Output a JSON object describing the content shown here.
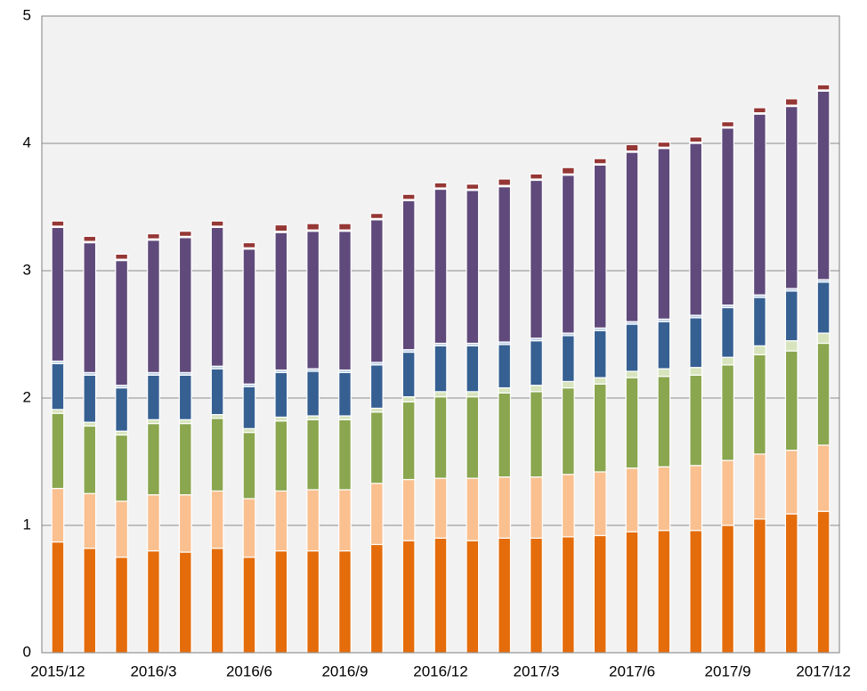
{
  "chart_data": {
    "type": "stacked_bar",
    "categories": [
      "2015/12",
      null,
      null,
      "2016/3",
      null,
      null,
      "2016/6",
      null,
      null,
      "2016/9",
      null,
      null,
      "2016/12",
      null,
      null,
      "2017/3",
      null,
      null,
      "2017/6",
      null,
      null,
      "2017/9",
      null,
      null,
      "2017/12"
    ],
    "ylim": [
      0,
      5
    ],
    "yticks": [
      0,
      1,
      2,
      3,
      4,
      5
    ],
    "grid": true,
    "series": [
      {
        "color": "#e46c0a",
        "values": [
          0.87,
          0.82,
          0.75,
          0.8,
          0.79,
          0.82,
          0.75,
          0.8,
          0.8,
          0.8,
          0.85,
          0.88,
          0.9,
          0.88,
          0.9,
          0.9,
          0.91,
          0.92,
          0.95,
          0.96,
          0.96,
          1.0,
          1.05,
          1.09,
          1.11
        ]
      },
      {
        "color": "#fac090",
        "values": [
          0.42,
          0.43,
          0.44,
          0.44,
          0.45,
          0.45,
          0.46,
          0.47,
          0.48,
          0.48,
          0.48,
          0.48,
          0.47,
          0.49,
          0.48,
          0.48,
          0.49,
          0.5,
          0.5,
          0.5,
          0.51,
          0.51,
          0.51,
          0.5,
          0.52
        ]
      },
      {
        "color": "#8aa64f",
        "values": [
          0.59,
          0.53,
          0.52,
          0.56,
          0.56,
          0.57,
          0.52,
          0.55,
          0.55,
          0.55,
          0.56,
          0.61,
          0.64,
          0.64,
          0.66,
          0.67,
          0.68,
          0.69,
          0.71,
          0.71,
          0.71,
          0.75,
          0.78,
          0.78,
          0.8
        ]
      },
      {
        "color": "#d7e4bd",
        "values": [
          0.03,
          0.03,
          0.03,
          0.03,
          0.03,
          0.03,
          0.03,
          0.03,
          0.03,
          0.03,
          0.03,
          0.04,
          0.04,
          0.04,
          0.04,
          0.05,
          0.05,
          0.05,
          0.05,
          0.06,
          0.06,
          0.06,
          0.07,
          0.08,
          0.08
        ]
      },
      {
        "color": "#366092",
        "values": [
          0.36,
          0.37,
          0.34,
          0.35,
          0.35,
          0.36,
          0.33,
          0.35,
          0.35,
          0.34,
          0.34,
          0.35,
          0.36,
          0.36,
          0.34,
          0.35,
          0.36,
          0.37,
          0.37,
          0.37,
          0.39,
          0.39,
          0.38,
          0.39,
          0.4
        ]
      },
      {
        "color": "#b9cde5",
        "values": [
          0.02,
          0.02,
          0.02,
          0.02,
          0.02,
          0.02,
          0.02,
          0.02,
          0.02,
          0.02,
          0.02,
          0.02,
          0.02,
          0.02,
          0.02,
          0.02,
          0.02,
          0.02,
          0.02,
          0.02,
          0.02,
          0.02,
          0.02,
          0.02,
          0.02
        ]
      },
      {
        "color": "#604a7b",
        "values": [
          1.05,
          1.02,
          0.98,
          1.04,
          1.06,
          1.09,
          1.06,
          1.08,
          1.08,
          1.09,
          1.12,
          1.17,
          1.21,
          1.2,
          1.22,
          1.24,
          1.24,
          1.28,
          1.33,
          1.34,
          1.35,
          1.39,
          1.42,
          1.43,
          1.48
        ]
      },
      {
        "color": "#f2dcdb",
        "values": [
          0.01,
          0.01,
          0.01,
          0.01,
          0.01,
          0.01,
          0.01,
          0.01,
          0.01,
          0.01,
          0.01,
          0.01,
          0.01,
          0.01,
          0.01,
          0.01,
          0.01,
          0.01,
          0.01,
          0.01,
          0.01,
          0.01,
          0.01,
          0.01,
          0.01
        ]
      },
      {
        "color": "#953735",
        "values": [
          0.04,
          0.04,
          0.04,
          0.04,
          0.04,
          0.04,
          0.04,
          0.05,
          0.05,
          0.05,
          0.04,
          0.04,
          0.04,
          0.04,
          0.05,
          0.04,
          0.05,
          0.04,
          0.05,
          0.04,
          0.04,
          0.04,
          0.04,
          0.05,
          0.04
        ]
      }
    ]
  }
}
